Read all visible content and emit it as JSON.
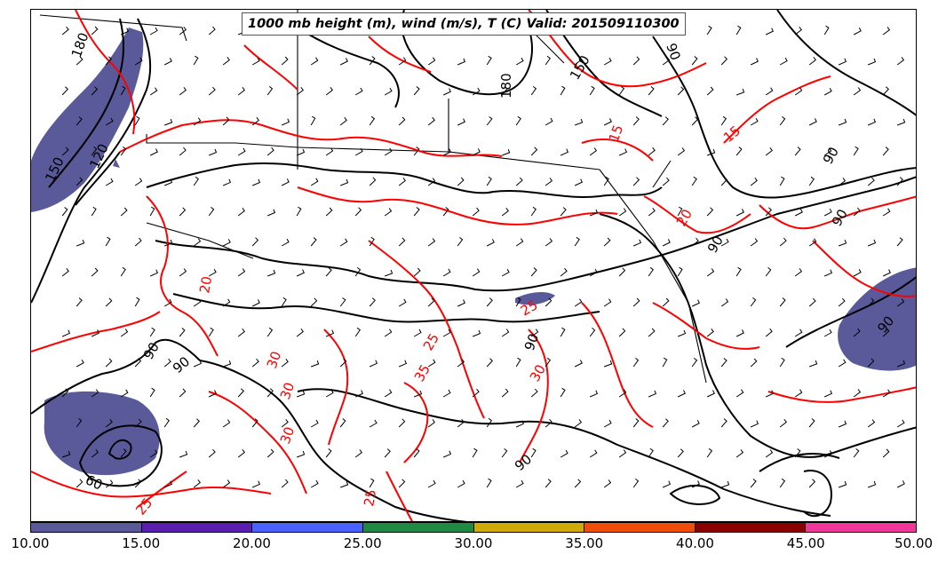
{
  "title": "1000 mb height (m), wind (m/s), T (C) Valid: 201509110300",
  "colorbar": {
    "colors": [
      "#5a5a9a",
      "#5a1fb0",
      "#4a63ff",
      "#208a45",
      "#cfaa08",
      "#ee4d0a",
      "#8b0000",
      "#f0389a"
    ],
    "ticks": [
      "10.00",
      "15.00",
      "20.00",
      "25.00",
      "30.00",
      "35.00",
      "40.00",
      "45.00",
      "50.00"
    ]
  },
  "contour_colors": {
    "height": "#000000",
    "temperature": "#ff0000",
    "wind_shade": "#5a5a9a"
  },
  "height_labels": [
    "180",
    "150",
    "120",
    "180",
    "150",
    "90",
    "90",
    "90",
    "90",
    "90",
    "90",
    "90",
    "90",
    "60",
    "90"
  ],
  "temperature_labels": [
    "15",
    "15",
    "20",
    "20",
    "25",
    "25",
    "30",
    "30",
    "30",
    "25",
    "25",
    "30",
    "35"
  ]
}
